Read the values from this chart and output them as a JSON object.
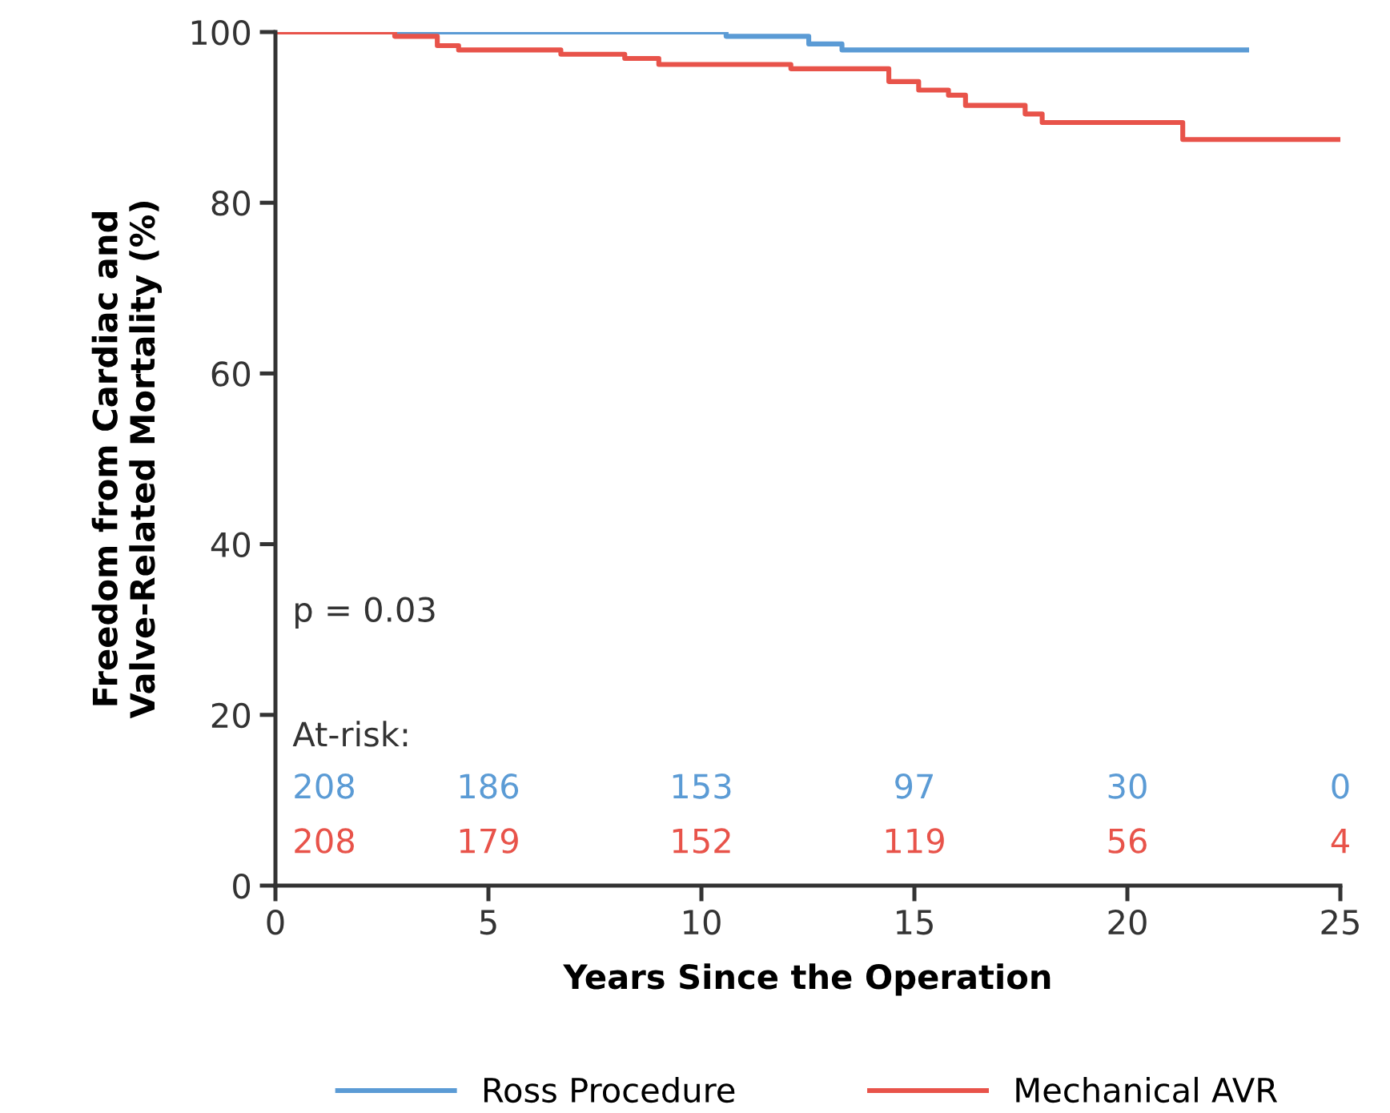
{
  "chart_data": {
    "type": "step",
    "xlabel": "Years Since the Operation",
    "ylabel": "Freedom from Cardiac and\nValve-Related Mortality (%)",
    "xlim": [
      0,
      25
    ],
    "ylim": [
      0,
      100
    ],
    "xticks": [
      0,
      5,
      10,
      15,
      20,
      25
    ],
    "yticks": [
      0,
      20,
      40,
      60,
      80,
      100
    ],
    "grid": false,
    "legend": "bottom",
    "marker": "none",
    "line_style": "solid",
    "series": [
      {
        "name": "Ross Procedure",
        "color": "#5b9bd5",
        "x": [
          0,
          10.58,
          12.52,
          13.3,
          22.8
        ],
        "values": [
          100,
          99.5,
          98.6,
          97.9,
          97.9
        ]
      },
      {
        "name": "Mechanical AVR",
        "color": "#e8534a",
        "x": [
          0,
          2.8,
          3.8,
          4.3,
          6.7,
          8.2,
          9.0,
          12.1,
          14.4,
          15.1,
          15.8,
          16.2,
          17.6,
          18.0,
          21.3,
          25
        ],
        "values": [
          100,
          99.5,
          98.4,
          97.9,
          97.4,
          96.9,
          96.2,
          95.7,
          94.2,
          93.2,
          92.6,
          91.4,
          90.4,
          89.4,
          87.4,
          87.4
        ]
      }
    ],
    "annotations": [
      "p = 0.03",
      "At-risk:",
      "208 186 153 97 30 0",
      "208 179 152 119 56 4"
    ]
  }
}
